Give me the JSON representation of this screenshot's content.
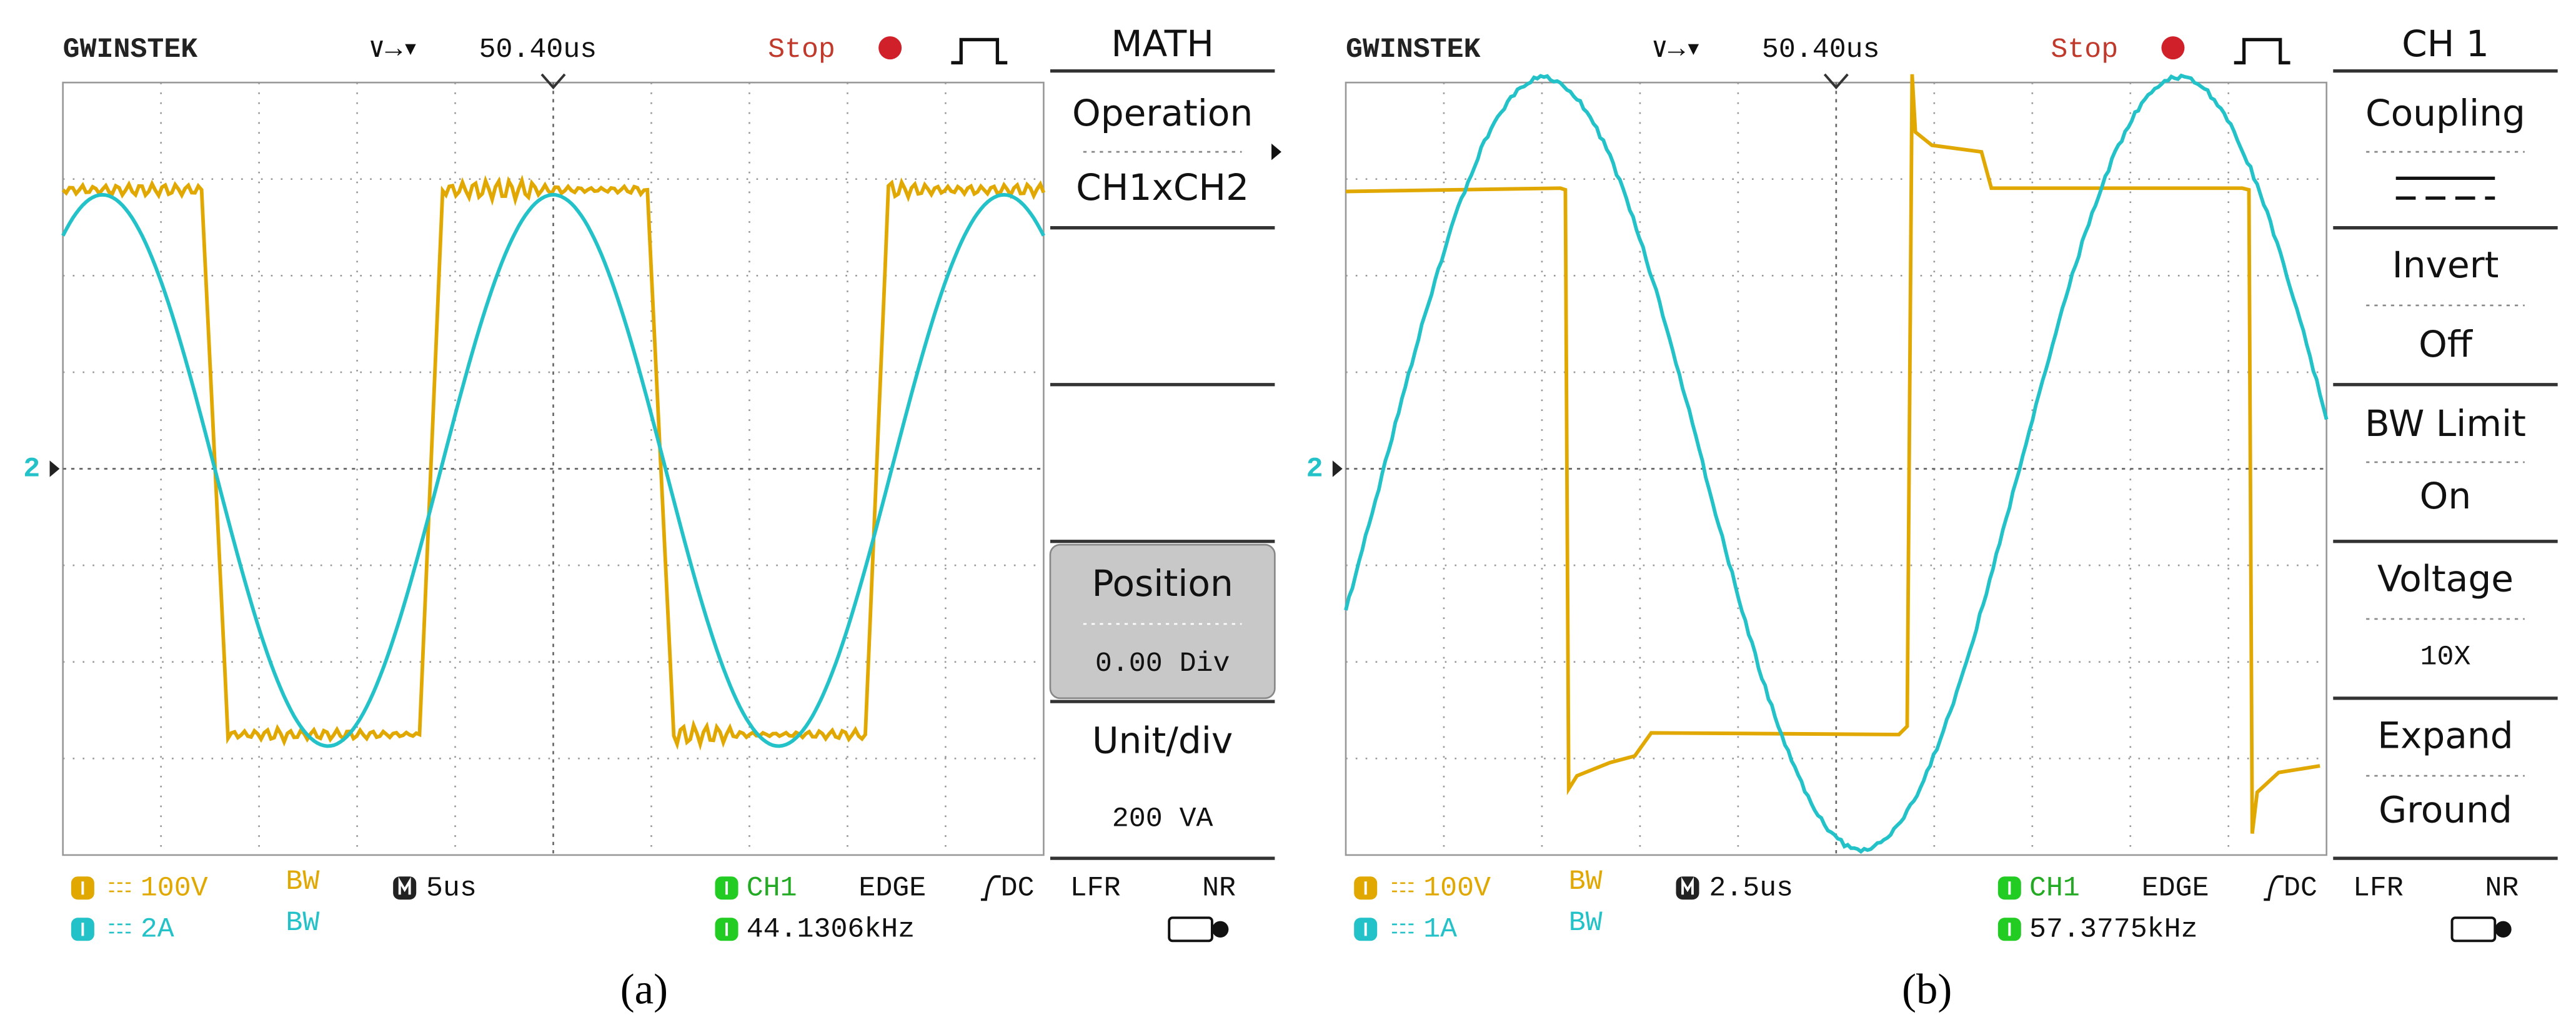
{
  "panels": [
    {
      "caption": "(a)",
      "brand": "GWINSTEK",
      "trigger_position": "50.40us",
      "status": "Stop",
      "ch2_marker": "2",
      "menu": {
        "title": "MATH",
        "entries": [
          "Operation",
          "CH1xCH2",
          "Position",
          "0.00 Div",
          "Unit/div",
          "200 VA"
        ]
      },
      "footer": {
        "ch1_scale": "100V",
        "ch2_scale": "2A",
        "bw": "BW",
        "timebase": "5us",
        "trigger_source": "CH1",
        "trigger_type": "EDGE",
        "trigger_coupling": "DC",
        "lfr": "LFR",
        "nr": "NR",
        "frequency": "44.1306kHz"
      }
    },
    {
      "caption": "(b)",
      "brand": "GWINSTEK",
      "trigger_position": "50.40us",
      "status": "Stop",
      "ch2_marker": "2",
      "menu": {
        "title": "CH 1",
        "entries": [
          "Coupling",
          "Invert",
          "Off",
          "BW Limit",
          "On",
          "Voltage",
          "10X",
          "Expand",
          "Ground"
        ]
      },
      "footer": {
        "ch1_scale": "100V",
        "ch2_scale": "1A",
        "bw": "BW",
        "timebase": "2.5us",
        "trigger_source": "CH1",
        "trigger_type": "EDGE",
        "trigger_coupling": "DC",
        "lfr": "LFR",
        "nr": "NR",
        "frequency": "57.3775kHz"
      }
    }
  ]
}
